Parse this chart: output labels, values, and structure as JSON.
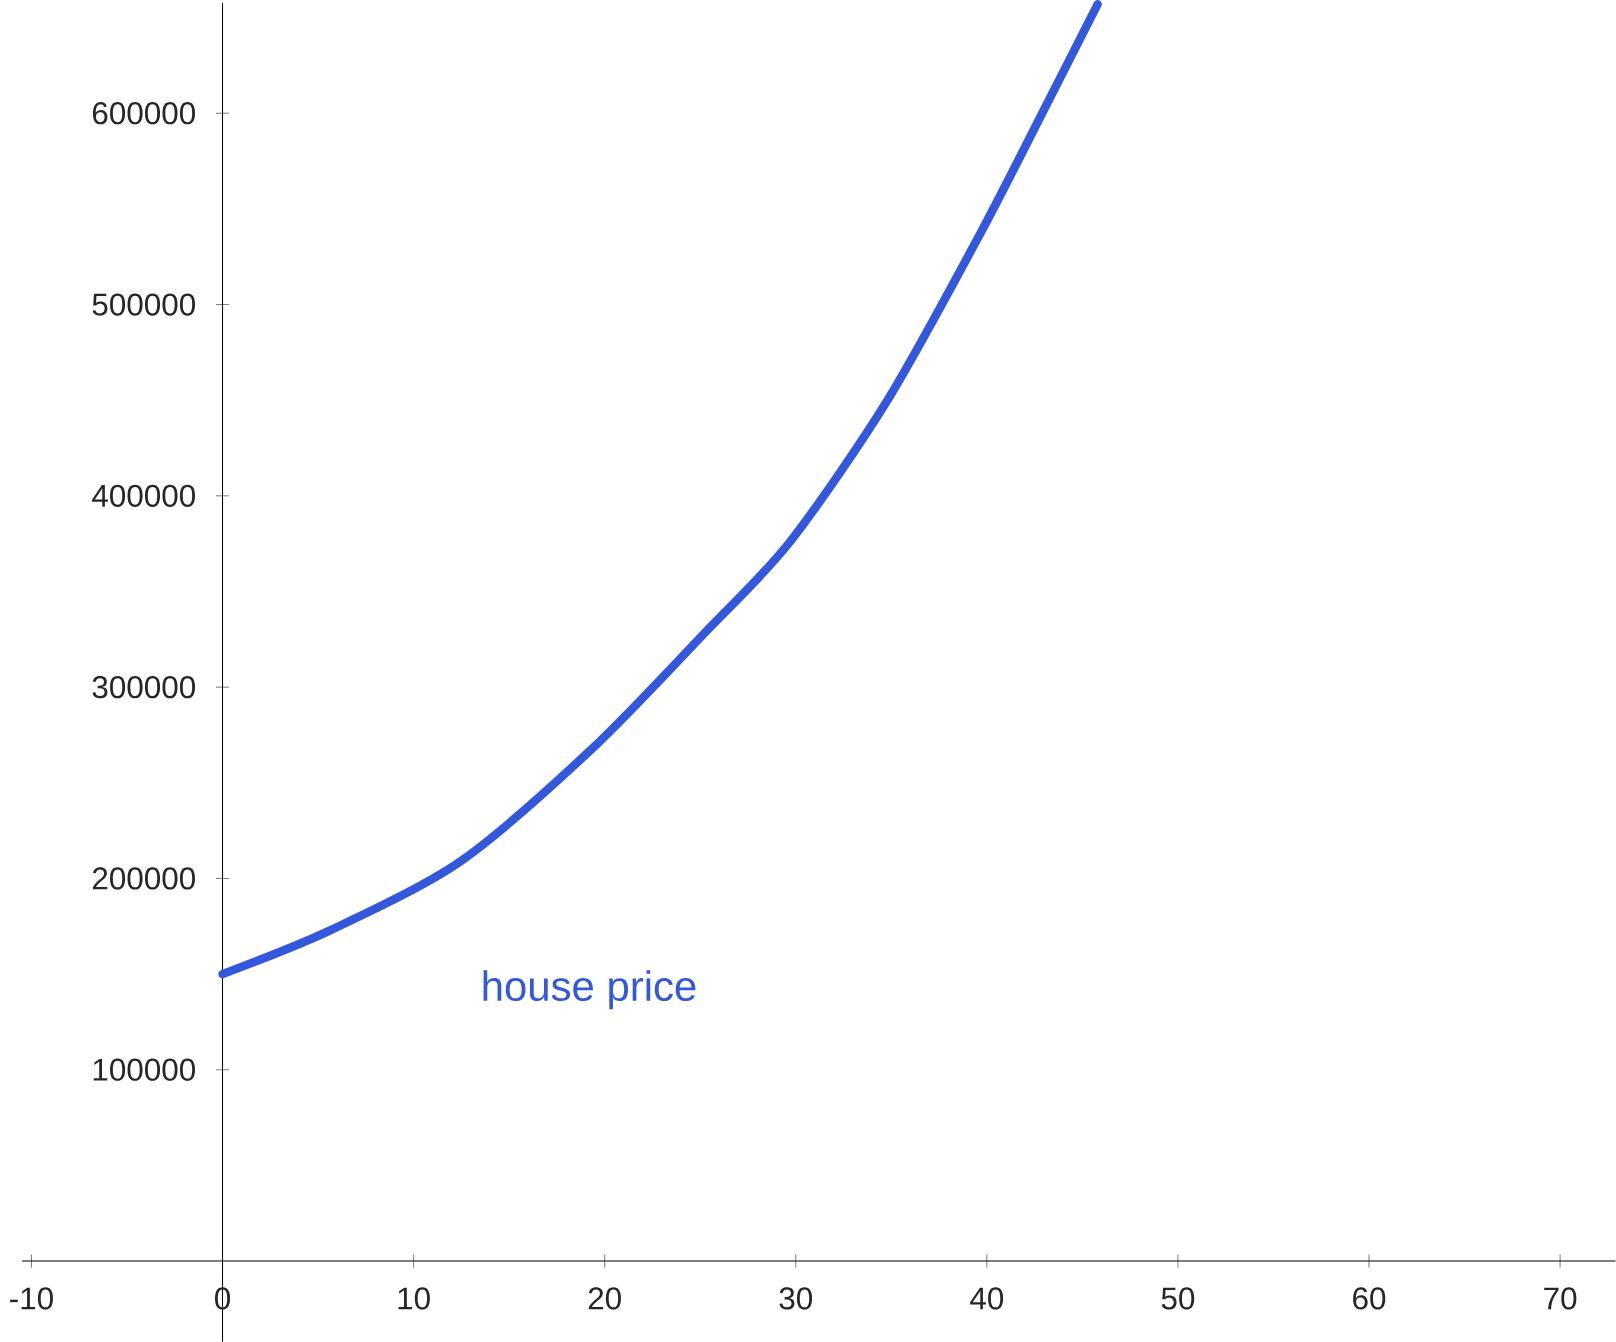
{
  "chart_data": {
    "type": "line",
    "x": [
      0,
      5.66,
      12.46,
      19.36,
      25.2,
      29.7,
      34.8,
      39.65,
      43.05,
      45.8
    ],
    "series": [
      {
        "name": "house price",
        "color": "#3358db",
        "values": [
          150000,
          173000,
          209000,
          268000,
          328000,
          376000,
          450000,
          537000,
          603000,
          657000
        ]
      }
    ],
    "xlim": [
      -10.5,
      72.9
    ],
    "ylim": [
      -42000,
      657700
    ],
    "xticks": [
      -10,
      0,
      10,
      20,
      30,
      40,
      50,
      60,
      70
    ],
    "yticks": [
      100000,
      200000,
      300000,
      400000,
      500000,
      600000
    ],
    "grid": false,
    "legend": false,
    "marker": "none",
    "line_style": "solid"
  }
}
